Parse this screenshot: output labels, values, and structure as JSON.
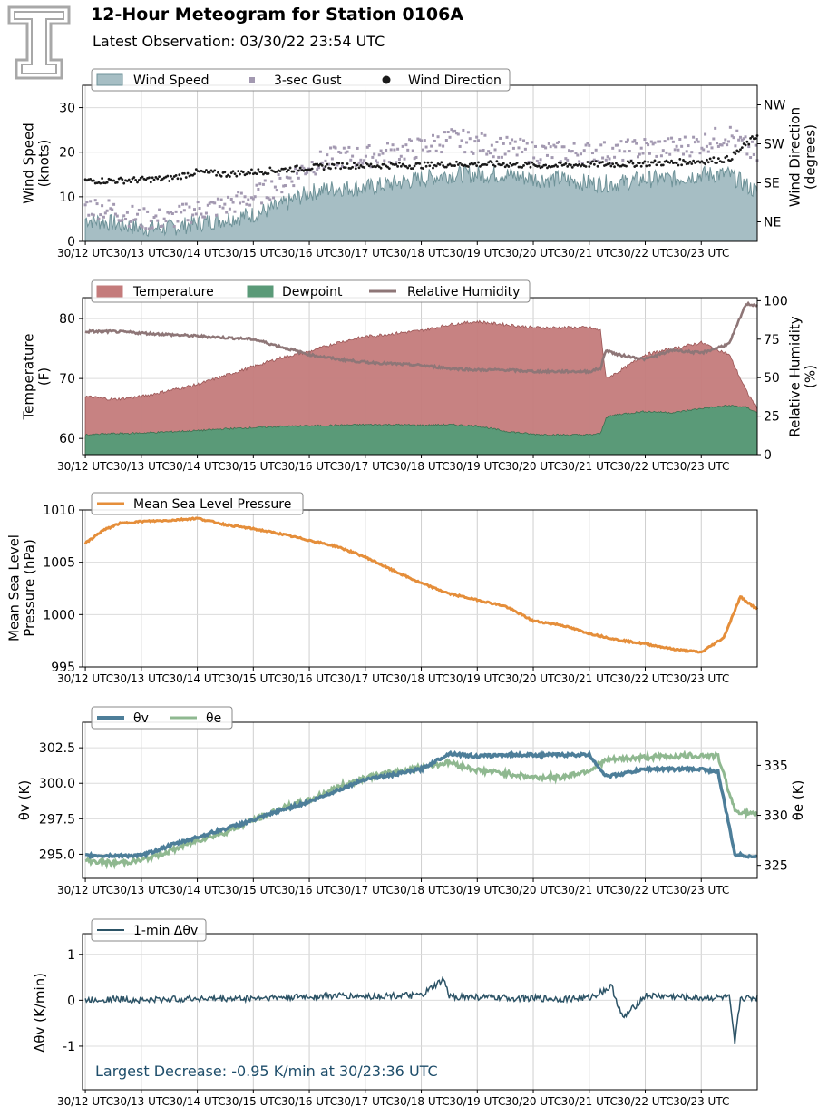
{
  "header": {
    "title": "12-Hour Meteogram for Station 0106A",
    "subtitle": "Latest Observation: 03/30/22 23:54 UTC"
  },
  "time_tick_labels": [
    "30/12 UTC",
    "30/13 UTC",
    "30/14 UTC",
    "30/15 UTC",
    "30/16 UTC",
    "30/17 UTC",
    "30/18 UTC",
    "30/19 UTC",
    "30/20 UTC",
    "30/21 UTC",
    "30/22 UTC",
    "30/23 UTC"
  ],
  "colors": {
    "wind_fill": "#a6bec4",
    "wind_line": "#6e9298",
    "gust": "#a399b1",
    "direction": "#1a1a1a",
    "temperature": "#c47b7b",
    "dewpoint": "#5a9a78",
    "rh": "#8e7677",
    "pressure": "#e58e3a",
    "theta_v": "#4d7e99",
    "theta_e": "#8fb890",
    "dtheta": "#2c5366",
    "annotation": "#1f4e6b"
  },
  "chart_data": [
    {
      "type": "area",
      "id": "wind",
      "ylabel": "Wind Speed\n(knots)",
      "y2label": "Wind Direction\n(degrees)",
      "ylim": [
        0,
        35
      ],
      "yticks": [
        0,
        10,
        20,
        30
      ],
      "y2_ticklabels": [
        "NE",
        "SE",
        "SW",
        "NW"
      ],
      "y2_tickvalues": [
        45,
        135,
        225,
        315
      ],
      "y2lim": [
        0,
        360
      ],
      "legend": [
        "Wind Speed",
        "3-sec Gust",
        "Wind Direction"
      ],
      "legend_position": "top-left",
      "grid": true,
      "series": [
        {
          "name": "Wind Speed",
          "x_hours": [
            12.0,
            12.5,
            13.0,
            13.5,
            14.0,
            14.5,
            15.0,
            15.5,
            16.0,
            16.5,
            17.0,
            17.5,
            18.0,
            18.5,
            19.0,
            19.5,
            20.0,
            20.5,
            21.0,
            21.5,
            22.0,
            22.5,
            23.0,
            23.5,
            24.0
          ],
          "values": [
            5,
            4,
            3,
            3,
            4,
            5,
            6,
            8,
            11,
            12,
            12,
            13,
            14,
            15,
            15,
            15,
            14,
            14,
            13,
            13,
            14,
            14,
            15,
            15,
            11
          ]
        },
        {
          "name": "3-sec Gust",
          "x_hours": [
            12.0,
            12.5,
            13.0,
            13.5,
            14.0,
            14.5,
            15.0,
            15.5,
            16.0,
            16.5,
            17.0,
            17.5,
            18.0,
            18.5,
            19.0,
            19.5,
            20.0,
            20.5,
            21.0,
            21.5,
            22.0,
            22.5,
            23.0,
            23.5,
            24.0
          ],
          "values": [
            8,
            7,
            5,
            5,
            7,
            8,
            10,
            13,
            17,
            19,
            19,
            20,
            21,
            23,
            22,
            21,
            20,
            20,
            20,
            20,
            21,
            21,
            22,
            24,
            19
          ]
        },
        {
          "name": "Wind Direction",
          "x_hours": [
            12.0,
            12.5,
            13.0,
            13.5,
            14.0,
            14.5,
            15.0,
            15.5,
            16.0,
            16.5,
            17.0,
            17.5,
            18.0,
            18.5,
            19.0,
            19.5,
            20.0,
            20.5,
            21.0,
            21.5,
            22.0,
            22.5,
            23.0,
            23.5,
            24.0
          ],
          "values": [
            140,
            140,
            142,
            145,
            160,
            155,
            160,
            165,
            170,
            175,
            175,
            175,
            175,
            178,
            178,
            178,
            175,
            175,
            178,
            178,
            180,
            182,
            185,
            190,
            245
          ]
        }
      ]
    },
    {
      "type": "area",
      "id": "temp",
      "ylabel": "Temperature\n(F)",
      "y2label": "Relative Humidity\n(%)",
      "ylim": [
        57.3,
        83.5
      ],
      "yticks": [
        60,
        70,
        80
      ],
      "y2lim": [
        0,
        102
      ],
      "y2ticks": [
        0,
        25,
        50,
        75,
        100
      ],
      "legend": [
        "Temperature",
        "Dewpoint",
        "Relative Humidity"
      ],
      "legend_position": "top-left",
      "grid": true,
      "series": [
        {
          "name": "Temperature",
          "x_hours": [
            12.0,
            12.5,
            13.0,
            13.5,
            14.0,
            14.5,
            15.0,
            15.5,
            16.0,
            16.5,
            17.0,
            17.5,
            18.0,
            18.5,
            19.0,
            19.5,
            20.0,
            20.5,
            21.0,
            21.2,
            21.3,
            21.5,
            22.0,
            22.5,
            23.0,
            23.5,
            23.8,
            24.0
          ],
          "values": [
            67,
            66.5,
            67,
            68,
            69,
            70.5,
            72,
            73.5,
            74.5,
            76,
            77,
            77.5,
            78,
            79,
            79.5,
            79,
            78.5,
            78.5,
            78.5,
            78,
            70,
            71,
            74,
            75,
            76,
            74,
            68,
            65
          ]
        },
        {
          "name": "Dewpoint",
          "x_hours": [
            12.0,
            12.5,
            13.0,
            13.5,
            14.0,
            14.5,
            15.0,
            15.5,
            16.0,
            16.5,
            17.0,
            17.5,
            18.0,
            18.5,
            19.0,
            19.5,
            20.0,
            20.5,
            21.0,
            21.2,
            21.3,
            21.5,
            22.0,
            22.5,
            23.0,
            23.5,
            23.8,
            24.0
          ],
          "values": [
            60.6,
            60.8,
            60.9,
            61.1,
            61.3,
            61.6,
            61.8,
            62,
            62.1,
            62.2,
            62.3,
            62.3,
            62.2,
            62.3,
            62.1,
            61.2,
            60.7,
            60.6,
            60.6,
            60.8,
            63.5,
            64,
            64.5,
            64.3,
            65,
            65.5,
            65.2,
            64.3
          ]
        },
        {
          "name": "Relative Humidity",
          "x_hours": [
            12.0,
            12.5,
            13.0,
            13.5,
            14.0,
            14.5,
            15.0,
            15.5,
            16.0,
            16.5,
            17.0,
            17.5,
            18.0,
            18.5,
            19.0,
            19.5,
            20.0,
            20.5,
            21.0,
            21.2,
            21.3,
            21.5,
            22.0,
            22.5,
            23.0,
            23.5,
            23.8,
            24.0
          ],
          "values": [
            80,
            80,
            79,
            78,
            77,
            76,
            75,
            70,
            65,
            62,
            60,
            59,
            58,
            56,
            55,
            55,
            54,
            54,
            54,
            56,
            68,
            65,
            62,
            68,
            66,
            72,
            98,
            97
          ]
        }
      ]
    },
    {
      "type": "line",
      "id": "pressure",
      "ylabel": "Mean Sea Level\nPressure (hPa)",
      "ylim": [
        995,
        1010
      ],
      "yticks": [
        995,
        1000,
        1005,
        1010
      ],
      "legend": [
        "Mean Sea Level Pressure"
      ],
      "legend_position": "top-left",
      "grid": true,
      "series": [
        {
          "name": "Mean Sea Level Pressure",
          "x_hours": [
            12.0,
            12.3,
            12.6,
            13.0,
            13.5,
            14.0,
            14.5,
            15.0,
            15.5,
            16.0,
            16.5,
            17.0,
            17.5,
            18.0,
            18.5,
            19.0,
            19.5,
            20.0,
            20.5,
            21.0,
            21.5,
            22.0,
            22.5,
            23.0,
            23.4,
            23.7,
            24.0
          ],
          "values": [
            1006.8,
            1008.0,
            1008.7,
            1008.9,
            1009.0,
            1009.2,
            1008.6,
            1008.2,
            1007.7,
            1007.1,
            1006.5,
            1005.5,
            1004.2,
            1003.0,
            1002.0,
            1001.4,
            1000.8,
            999.4,
            999.0,
            998.2,
            997.6,
            997.2,
            996.7,
            996.4,
            997.8,
            1001.7,
            1000.5
          ]
        }
      ]
    },
    {
      "type": "line",
      "id": "theta",
      "ylabel": "θv (K)",
      "y2label": "θe (K)",
      "ylim": [
        293.3,
        304.3
      ],
      "yticks": [
        295.0,
        297.5,
        300.0,
        302.5
      ],
      "y2lim": [
        323.7,
        339.3
      ],
      "y2ticks": [
        325,
        330,
        335
      ],
      "legend": [
        "θv",
        "θe"
      ],
      "legend_position": "top-left",
      "grid": true,
      "series": [
        {
          "name": "θv",
          "x_hours": [
            12.0,
            12.5,
            13.0,
            13.5,
            14.0,
            14.5,
            15.0,
            15.5,
            16.0,
            16.5,
            17.0,
            17.5,
            18.0,
            18.5,
            19.0,
            19.5,
            20.0,
            20.5,
            21.0,
            21.3,
            21.5,
            22.0,
            22.5,
            23.0,
            23.3,
            23.6,
            24.0
          ],
          "values": [
            294.9,
            294.9,
            294.9,
            295.6,
            296.2,
            296.8,
            297.4,
            298.1,
            298.7,
            299.5,
            300.3,
            300.6,
            301.0,
            302.1,
            301.9,
            302.0,
            302.0,
            302.0,
            302.0,
            300.5,
            300.6,
            301.0,
            301.0,
            301.0,
            300.8,
            295.0,
            294.8
          ]
        },
        {
          "name": "θe",
          "x_hours": [
            12.0,
            12.5,
            13.0,
            13.5,
            14.0,
            14.5,
            15.0,
            15.5,
            16.0,
            16.5,
            17.0,
            17.5,
            18.0,
            18.5,
            19.0,
            19.5,
            20.0,
            20.5,
            21.0,
            21.3,
            21.5,
            22.0,
            22.5,
            23.0,
            23.3,
            23.6,
            24.0
          ],
          "values": [
            325.5,
            325.2,
            325.5,
            326.4,
            327.5,
            328.3,
            329.5,
            330.7,
            331.5,
            332.8,
            333.8,
            334.3,
            334.8,
            335.3,
            334.5,
            334.2,
            333.8,
            333.8,
            334.5,
            335.5,
            335.6,
            335.8,
            335.9,
            336.0,
            335.9,
            330.5,
            330.0
          ]
        }
      ]
    },
    {
      "type": "line",
      "id": "dtheta",
      "ylabel": "Δθv (K/min)",
      "ylim": [
        -1.95,
        1.45
      ],
      "yticks": [
        -1,
        0,
        1
      ],
      "legend": [
        "1-min Δθv"
      ],
      "legend_position": "top-left",
      "grid": true,
      "annotation": "Largest Decrease: -0.95 K/min at 30/23:36 UTC",
      "series": [
        {
          "name": "1-min Δθv",
          "x_hours": [
            12.0,
            12.5,
            13.0,
            13.5,
            14.0,
            14.5,
            15.0,
            15.5,
            16.0,
            16.5,
            17.0,
            17.5,
            18.0,
            18.4,
            18.5,
            19.0,
            19.5,
            20.0,
            20.5,
            21.0,
            21.4,
            21.6,
            22.0,
            22.5,
            23.0,
            23.5,
            23.6,
            23.7,
            24.0
          ],
          "values": [
            0,
            0.03,
            0,
            0.02,
            0.04,
            0.03,
            0.05,
            0.06,
            0.08,
            0.1,
            0.08,
            0.1,
            0.1,
            0.45,
            0.08,
            0.07,
            0.05,
            0.04,
            0.03,
            0.05,
            0.3,
            -0.4,
            0.1,
            0.08,
            0.05,
            0.06,
            -0.95,
            0.05,
            0.05
          ]
        }
      ]
    }
  ]
}
